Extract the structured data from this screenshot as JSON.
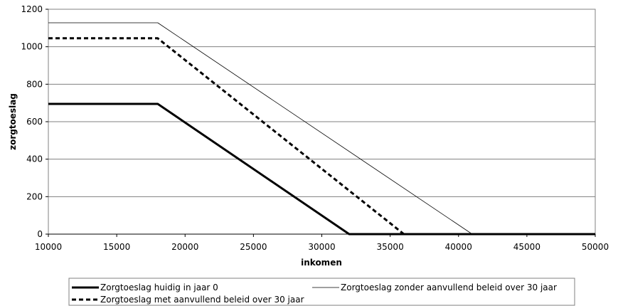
{
  "chart_data": {
    "type": "line",
    "title": "",
    "xlabel": "inkomen",
    "ylabel": "zorgtoeslag",
    "xlim": [
      10000,
      50000
    ],
    "ylim": [
      0,
      1200
    ],
    "xticks": [
      10000,
      15000,
      20000,
      25000,
      30000,
      35000,
      40000,
      45000,
      50000
    ],
    "yticks": [
      0,
      200,
      400,
      600,
      800,
      1000,
      1200
    ],
    "grid": "horizontal",
    "legend_position": "bottom",
    "series": [
      {
        "name": "Zorgtoeslag huidig in jaar 0",
        "style": "thick-solid",
        "color": "#000000",
        "x": [
          10000,
          18000,
          32000,
          50000
        ],
        "y": [
          695,
          695,
          0,
          0
        ]
      },
      {
        "name": "Zorgtoeslag zonder aanvullend beleid over 30 jaar",
        "style": "thin-solid",
        "color": "#000000",
        "x": [
          10000,
          18000,
          41000,
          50000
        ],
        "y": [
          1128,
          1128,
          0,
          0
        ]
      },
      {
        "name": "Zorgtoeslag met aanvullend beleid over 30 jaar",
        "style": "dashed",
        "color": "#000000",
        "x": [
          10000,
          18000,
          36000,
          50000
        ],
        "y": [
          1045,
          1045,
          0,
          0
        ]
      }
    ]
  }
}
